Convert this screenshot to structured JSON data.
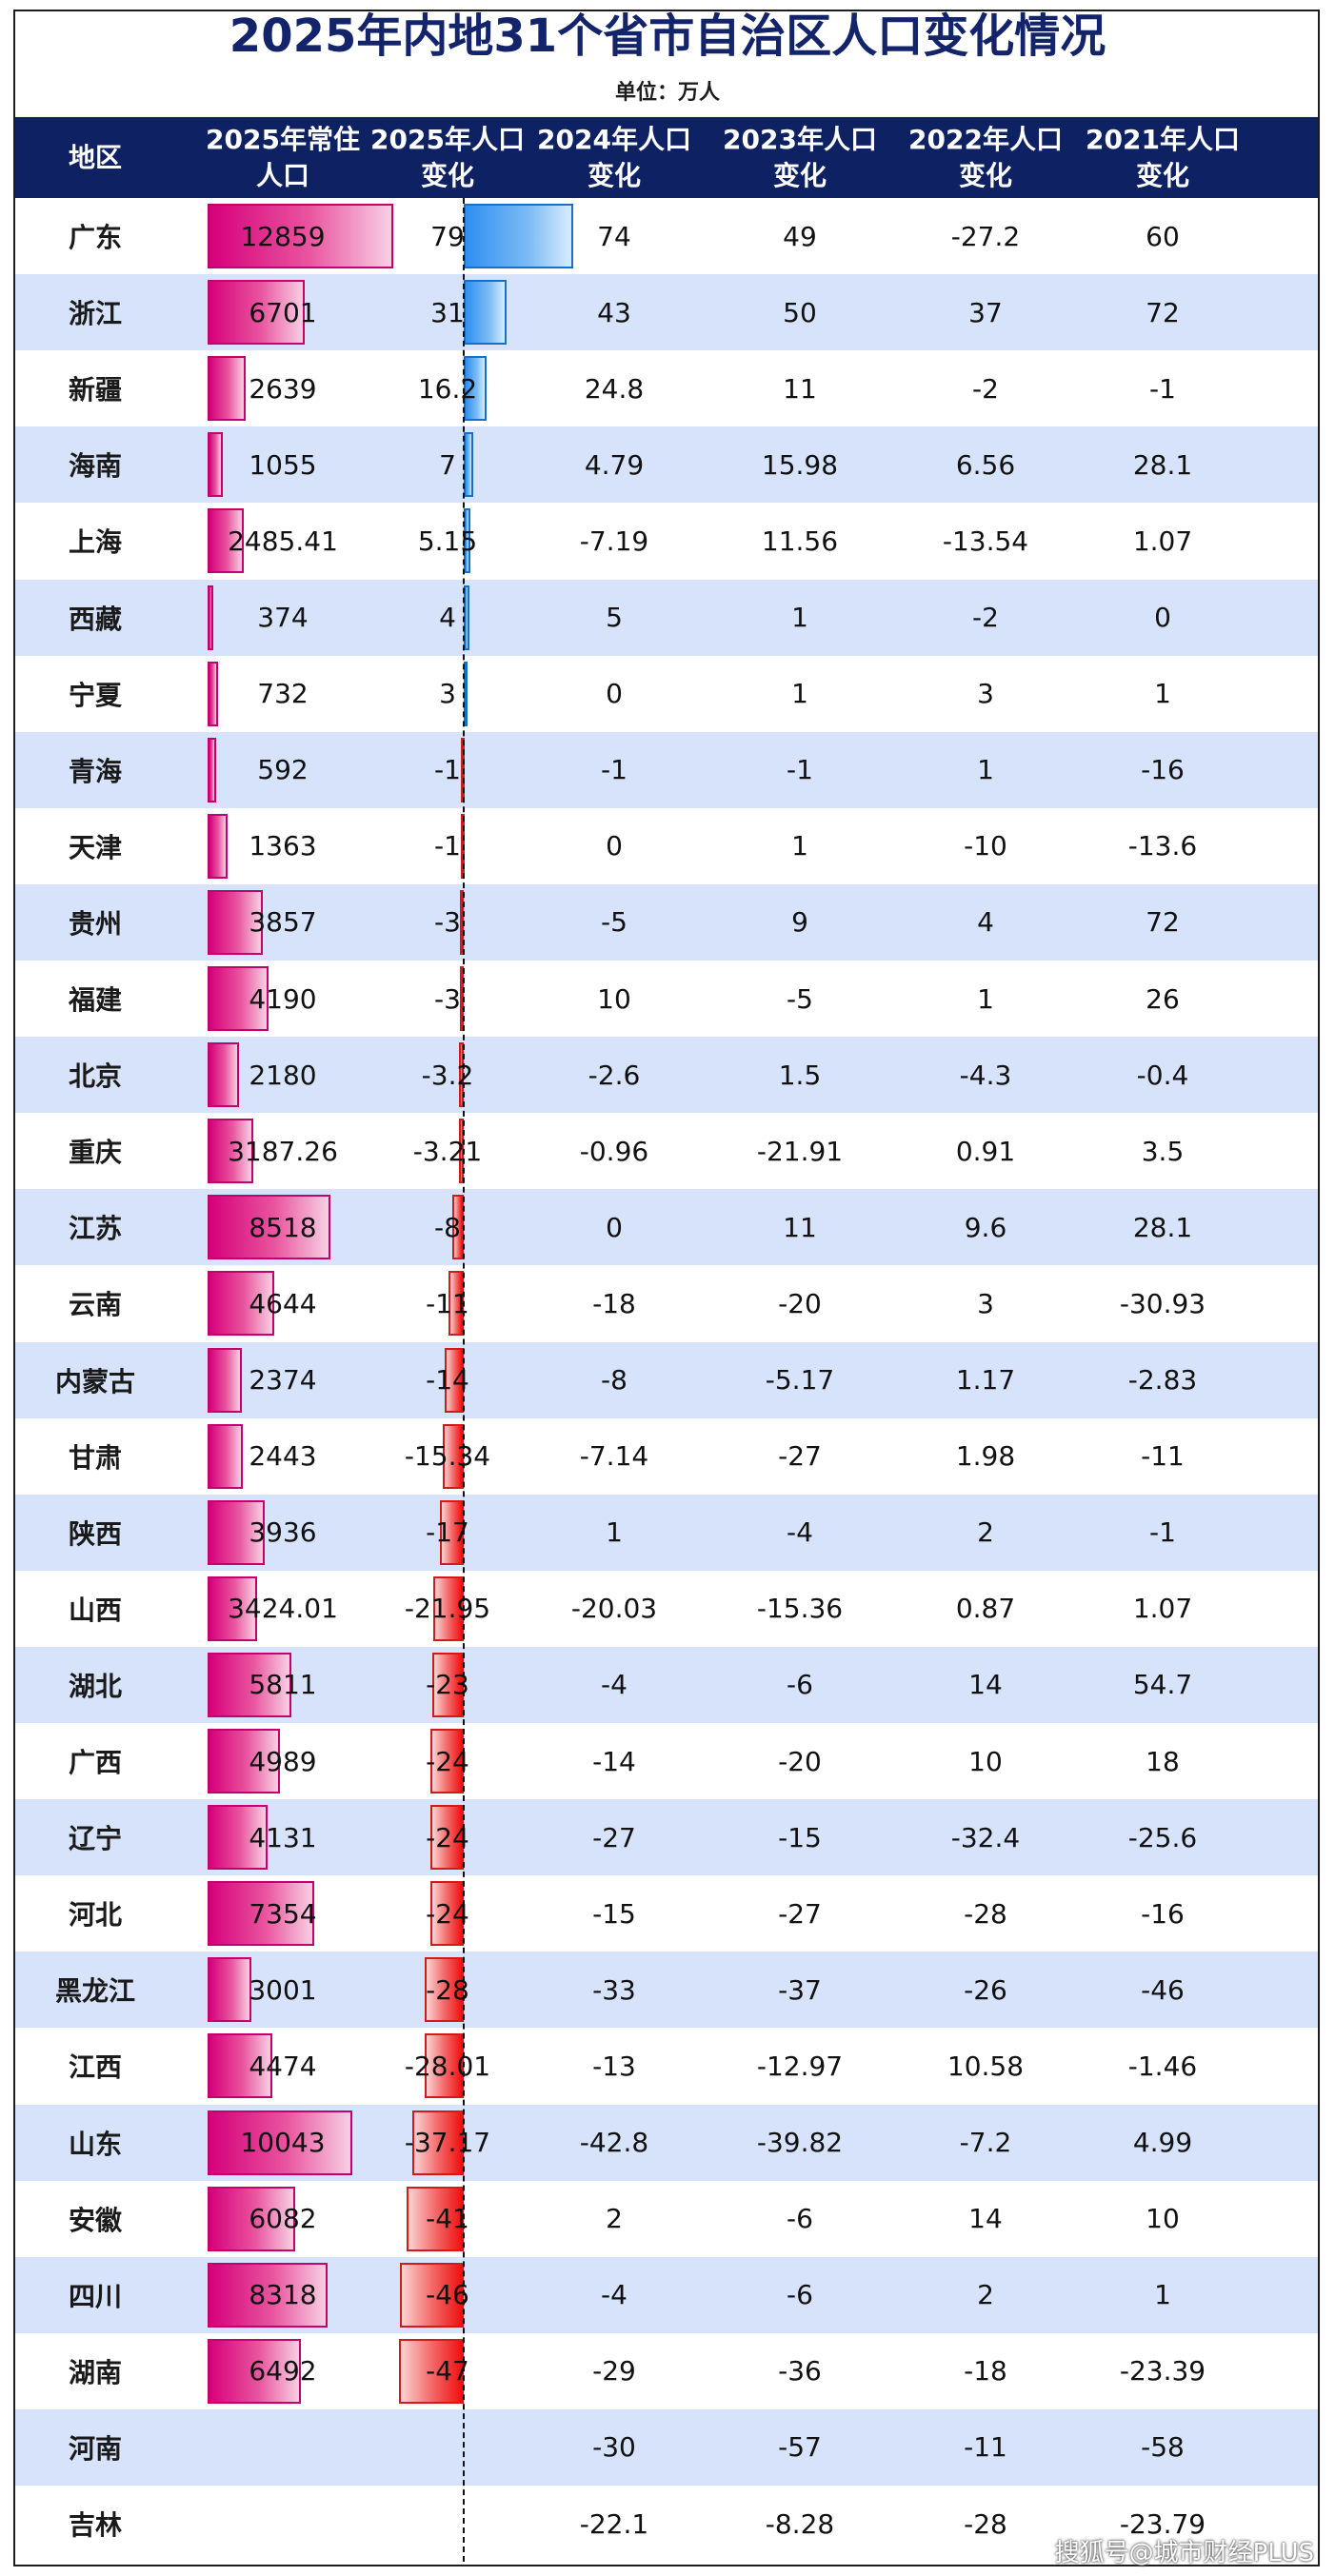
{
  "title": "2025年内地31个省市自治区人口变化情况",
  "unit": "单位：万人",
  "watermark": "搜狐号@城市财经PLUS",
  "colors": {
    "header": "#0e2163",
    "title": "#13246a",
    "row_alt": "#d6e3fb",
    "pop_bar": "#d6007a",
    "pos_change": "#2f8ff0",
    "neg_change": "#ef1010"
  },
  "headers": [
    [
      "地区"
    ],
    [
      "2025年常住",
      "人口"
    ],
    [
      "2025年人口",
      "变化"
    ],
    [
      "2024年人口",
      "变化"
    ],
    [
      "2023年人口",
      "变化"
    ],
    [
      "2022年人口",
      "变化"
    ],
    [
      "2021年人口",
      "变化"
    ]
  ],
  "chart_data": {
    "type": "table",
    "columns": [
      "地区",
      "2025年常住人口",
      "2025年人口变化",
      "2024年人口变化",
      "2023年人口变化",
      "2022年人口变化",
      "2021年人口变化"
    ],
    "rows": [
      [
        "广东",
        "12859",
        "79",
        "74",
        "49",
        "-27.2",
        "60"
      ],
      [
        "浙江",
        "6701",
        "31",
        "43",
        "50",
        "37",
        "72"
      ],
      [
        "新疆",
        "2639",
        "16.2",
        "24.8",
        "11",
        "-2",
        "-1"
      ],
      [
        "海南",
        "1055",
        "7",
        "4.79",
        "15.98",
        "6.56",
        "28.1"
      ],
      [
        "上海",
        "2485.41",
        "5.15",
        "-7.19",
        "11.56",
        "-13.54",
        "1.07"
      ],
      [
        "西藏",
        "374",
        "4",
        "5",
        "1",
        "-2",
        "0"
      ],
      [
        "宁夏",
        "732",
        "3",
        "0",
        "1",
        "3",
        "1"
      ],
      [
        "青海",
        "592",
        "-1",
        "-1",
        "-1",
        "1",
        "-16"
      ],
      [
        "天津",
        "1363",
        "-1",
        "0",
        "1",
        "-10",
        "-13.6"
      ],
      [
        "贵州",
        "3857",
        "-3",
        "-5",
        "9",
        "4",
        "72"
      ],
      [
        "福建",
        "4190",
        "-3",
        "10",
        "-5",
        "1",
        "26"
      ],
      [
        "北京",
        "2180",
        "-3.2",
        "-2.6",
        "1.5",
        "-4.3",
        "-0.4"
      ],
      [
        "重庆",
        "3187.26",
        "-3.21",
        "-0.96",
        "-21.91",
        "0.91",
        "3.5"
      ],
      [
        "江苏",
        "8518",
        "-8",
        "0",
        "11",
        "9.6",
        "28.1"
      ],
      [
        "云南",
        "4644",
        "-11",
        "-18",
        "-20",
        "3",
        "-30.93"
      ],
      [
        "内蒙古",
        "2374",
        "-14",
        "-8",
        "-5.17",
        "1.17",
        "-2.83"
      ],
      [
        "甘肃",
        "2443",
        "-15.34",
        "-7.14",
        "-27",
        "1.98",
        "-11"
      ],
      [
        "陕西",
        "3936",
        "-17",
        "1",
        "-4",
        "2",
        "-1"
      ],
      [
        "山西",
        "3424.01",
        "-21.95",
        "-20.03",
        "-15.36",
        "0.87",
        "1.07"
      ],
      [
        "湖北",
        "5811",
        "-23",
        "-4",
        "-6",
        "14",
        "54.7"
      ],
      [
        "广西",
        "4989",
        "-24",
        "-14",
        "-20",
        "10",
        "18"
      ],
      [
        "辽宁",
        "4131",
        "-24",
        "-27",
        "-15",
        "-32.4",
        "-25.6"
      ],
      [
        "河北",
        "7354",
        "-24",
        "-15",
        "-27",
        "-28",
        "-16"
      ],
      [
        "黑龙江",
        "3001",
        "-28",
        "-33",
        "-37",
        "-26",
        "-46"
      ],
      [
        "江西",
        "4474",
        "-28.01",
        "-13",
        "-12.97",
        "10.58",
        "-1.46"
      ],
      [
        "山东",
        "10043",
        "-37.17",
        "-42.8",
        "-39.82",
        "-7.2",
        "4.99"
      ],
      [
        "安徽",
        "6082",
        "-41",
        "2",
        "-6",
        "14",
        "10"
      ],
      [
        "四川",
        "8318",
        "-46",
        "-4",
        "-6",
        "2",
        "1"
      ],
      [
        "湖南",
        "6492",
        "-47",
        "-29",
        "-36",
        "-18",
        "-23.39"
      ],
      [
        "河南",
        "",
        "",
        "-30",
        "-57",
        "-11",
        "-58"
      ],
      [
        "吉林",
        "",
        "",
        "-22.1",
        "-8.28",
        "-28",
        "-23.79"
      ]
    ]
  }
}
